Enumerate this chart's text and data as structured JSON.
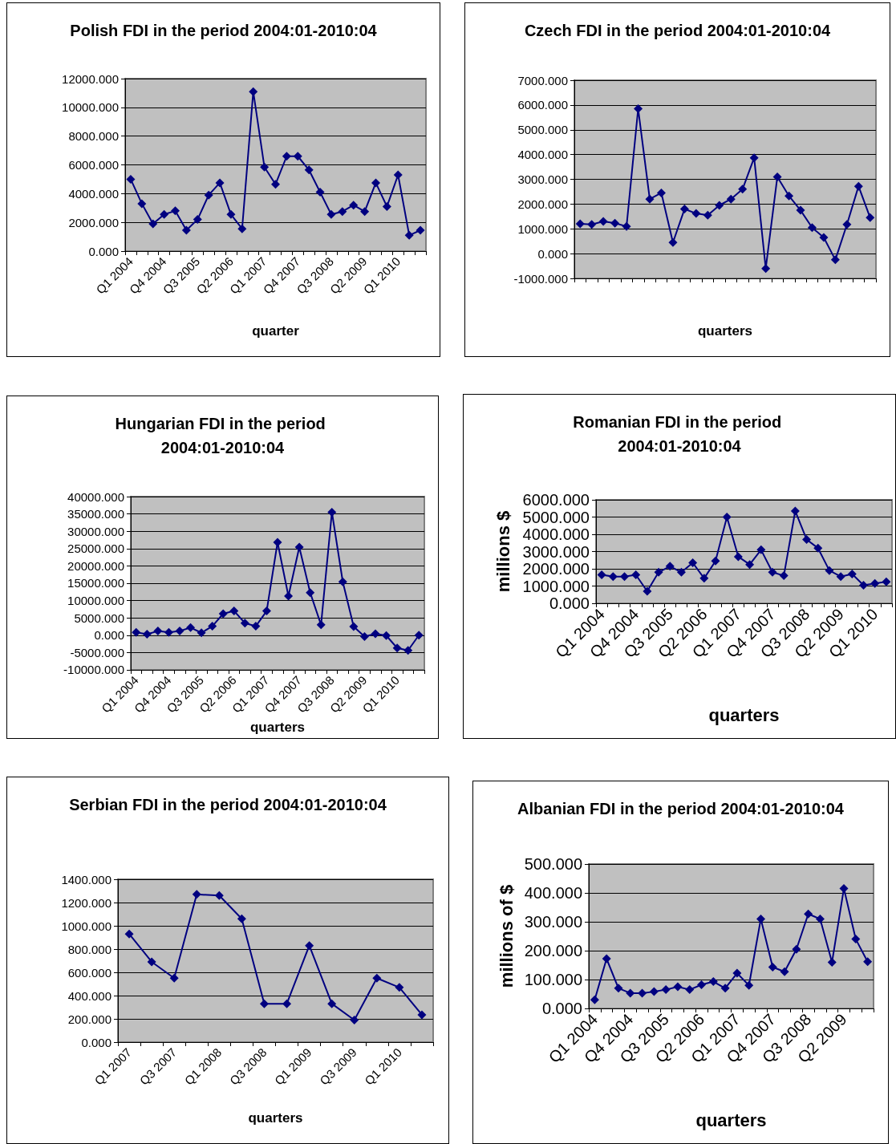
{
  "chart_data": [
    {
      "type": "line",
      "title": "Polish FDI in the period 2004:01-2010:04",
      "xlabel": "quarter",
      "categories": [
        "Q1 2004",
        null,
        null,
        "Q4 2004",
        null,
        null,
        "Q3 2005",
        null,
        null,
        "Q2 2006",
        null,
        null,
        "Q1 2007",
        null,
        null,
        "Q4 2007",
        null,
        null,
        "Q3 2008",
        null,
        null,
        "Q2 2009",
        null,
        null,
        "Q1 2010",
        null,
        null
      ],
      "series": [
        {
          "color": "#000080",
          "values": [
            5000,
            3300,
            1900,
            2550,
            2800,
            1450,
            2200,
            3900,
            4750,
            2550,
            1550,
            11100,
            5850,
            4650,
            6600,
            6600,
            5650,
            4100,
            2550,
            2750,
            3200,
            2750,
            4750,
            3100,
            5300,
            1100,
            1450
          ]
        }
      ],
      "ylim": [
        0,
        12000
      ],
      "yticks": [
        {
          "value": 0,
          "label": "0.000"
        },
        {
          "value": 2000,
          "label": "2000.000"
        },
        {
          "value": 4000,
          "label": "4000.000"
        },
        {
          "value": 6000,
          "label": "6000.000"
        },
        {
          "value": 8000,
          "label": "8000.000"
        },
        {
          "value": 10000,
          "label": "10000.000"
        },
        {
          "value": 12000,
          "label": "12000.000"
        }
      ],
      "grid": "y",
      "marker": "diamond"
    },
    {
      "type": "line",
      "title": "Czech FDI in the period 2004:01-2010:04",
      "xlabel": "quarters",
      "tick_labels": "y",
      "categories": [
        null,
        null,
        null,
        null,
        null,
        null,
        null,
        null,
        null,
        null,
        null,
        null,
        null,
        null,
        null,
        null,
        null,
        null,
        null,
        null,
        null,
        null,
        null,
        null,
        null,
        null
      ],
      "series": [
        {
          "color": "#000080",
          "values": [
            1200,
            1180,
            1300,
            1230,
            1100,
            5850,
            2200,
            2450,
            450,
            1800,
            1620,
            1550,
            1950,
            2200,
            2600,
            3870,
            -600,
            3100,
            2330,
            1750,
            1050,
            650,
            -250,
            1180,
            2720,
            1450
          ]
        }
      ],
      "ylim": [
        -1000,
        7000
      ],
      "yticks": [
        {
          "value": -1000,
          "label": "-1000.000"
        },
        {
          "value": 0,
          "label": "0.000"
        },
        {
          "value": 1000,
          "label": "1000.000"
        },
        {
          "value": 2000,
          "label": "2000.000"
        },
        {
          "value": 3000,
          "label": "3000.000"
        },
        {
          "value": 4000,
          "label": "4000.000"
        },
        {
          "value": 5000,
          "label": "5000.000"
        },
        {
          "value": 6000,
          "label": "6000.000"
        },
        {
          "value": 7000,
          "label": "7000.000"
        }
      ],
      "grid": "y",
      "marker": "diamond"
    },
    {
      "type": "line",
      "title": "Hungarian FDI in the period 2004:01-2010:04",
      "xlabel": "quarters",
      "categories": [
        "Q1 2004",
        null,
        null,
        "Q4 2004",
        null,
        null,
        "Q3 2005",
        null,
        null,
        "Q2 2006",
        null,
        null,
        "Q1 2007",
        null,
        null,
        "Q4 2007",
        null,
        null,
        "Q3 2008",
        null,
        null,
        "Q2 2009",
        null,
        null,
        "Q1 2010",
        null,
        null
      ],
      "series": [
        {
          "color": "#000080",
          "values": [
            800,
            300,
            1200,
            800,
            1200,
            2200,
            700,
            2600,
            6200,
            7000,
            3500,
            2600,
            7000,
            26800,
            11300,
            25400,
            12300,
            3000,
            35500,
            15400,
            2500,
            -400,
            400,
            -100,
            -3700,
            -4400,
            0
          ]
        }
      ],
      "ylim": [
        -10000,
        40000
      ],
      "yticks": [
        {
          "value": -10000,
          "label": "-10000.000"
        },
        {
          "value": -5000,
          "label": "-5000.000"
        },
        {
          "value": 0,
          "label": "0.000"
        },
        {
          "value": 5000,
          "label": "5000.000"
        },
        {
          "value": 10000,
          "label": "10000.000"
        },
        {
          "value": 15000,
          "label": "15000.000"
        },
        {
          "value": 20000,
          "label": "20000.000"
        },
        {
          "value": 25000,
          "label": "25000.000"
        },
        {
          "value": 30000,
          "label": "30000.000"
        },
        {
          "value": 35000,
          "label": "35000.000"
        },
        {
          "value": 40000,
          "label": "40000.000"
        }
      ],
      "grid": "y",
      "marker": "diamond"
    },
    {
      "type": "line",
      "title": "Romanian FDI in the period 2004:01-2010:04",
      "xlabel": "quarters",
      "ylabel": "millions $",
      "categories": [
        "Q1 2004",
        null,
        null,
        "Q4 2004",
        null,
        null,
        "Q3 2005",
        null,
        null,
        "Q2 2006",
        null,
        null,
        "Q1 2007",
        null,
        null,
        "Q4 2007",
        null,
        null,
        "Q3 2008",
        null,
        null,
        "Q2 2009",
        null,
        null,
        "Q1 2010",
        null
      ],
      "series": [
        {
          "color": "#000080",
          "values": [
            1650,
            1550,
            1550,
            1650,
            700,
            1800,
            2150,
            1800,
            2350,
            1450,
            2450,
            5000,
            2700,
            2250,
            3100,
            1800,
            1600,
            5350,
            3700,
            3200,
            1900,
            1550,
            1700,
            1050,
            1150,
            1250
          ]
        }
      ],
      "ylim": [
        0,
        6000
      ],
      "yticks": [
        {
          "value": 0,
          "label": "0.000"
        },
        {
          "value": 1000,
          "label": "1000.000"
        },
        {
          "value": 2000,
          "label": "2000.000"
        },
        {
          "value": 3000,
          "label": "3000.000"
        },
        {
          "value": 4000,
          "label": "4000.000"
        },
        {
          "value": 5000,
          "label": "5000.000"
        },
        {
          "value": 6000,
          "label": "6000.000"
        }
      ],
      "grid": "y",
      "marker": "diamond"
    },
    {
      "type": "line",
      "title": "Serbian FDI in the period 2004:01-2010:04",
      "xlabel": "quarters",
      "categories": [
        "Q1 2007",
        null,
        "Q3 2007",
        null,
        "Q1 2008",
        null,
        "Q3 2008",
        null,
        "Q1 2009",
        null,
        "Q3 2009",
        null,
        "Q1 2010",
        null
      ],
      "series": [
        {
          "color": "#000080",
          "values": [
            930,
            690,
            550,
            1270,
            1260,
            1060,
            330,
            330,
            830,
            330,
            190,
            550,
            470,
            235
          ]
        }
      ],
      "ylim": [
        0,
        1400
      ],
      "yticks": [
        {
          "value": 0,
          "label": "0.000"
        },
        {
          "value": 200,
          "label": "200.000"
        },
        {
          "value": 400,
          "label": "400.000"
        },
        {
          "value": 600,
          "label": "600.000"
        },
        {
          "value": 800,
          "label": "800.000"
        },
        {
          "value": 1000,
          "label": "1000.000"
        },
        {
          "value": 1200,
          "label": "1200.000"
        },
        {
          "value": 1400,
          "label": "1400.000"
        }
      ],
      "grid": "y",
      "marker": "diamond"
    },
    {
      "type": "line",
      "title": "Albanian FDI in the period 2004:01-2010:04",
      "xlabel": "quarters",
      "ylabel": "millions of $",
      "categories": [
        "Q1 2004",
        null,
        null,
        "Q4 2004",
        null,
        null,
        "Q3 2005",
        null,
        null,
        "Q2 2006",
        null,
        null,
        "Q1 2007",
        null,
        null,
        "Q4 2007",
        null,
        null,
        "Q3 2008",
        null,
        null,
        "Q2 2009",
        null,
        null
      ],
      "series": [
        {
          "color": "#000080",
          "values": [
            30,
            172,
            70,
            53,
            53,
            58,
            65,
            75,
            65,
            82,
            93,
            70,
            122,
            80,
            310,
            143,
            127,
            205,
            327,
            310,
            160,
            415,
            240,
            162
          ]
        }
      ],
      "ylim": [
        0,
        500
      ],
      "yticks": [
        {
          "value": 0,
          "label": "0.000"
        },
        {
          "value": 100,
          "label": "100.000"
        },
        {
          "value": 200,
          "label": "200.000"
        },
        {
          "value": 300,
          "label": "300.000"
        },
        {
          "value": 400,
          "label": "400.000"
        },
        {
          "value": 500,
          "label": "500.000"
        }
      ],
      "grid": "y",
      "marker": "diamond"
    }
  ]
}
